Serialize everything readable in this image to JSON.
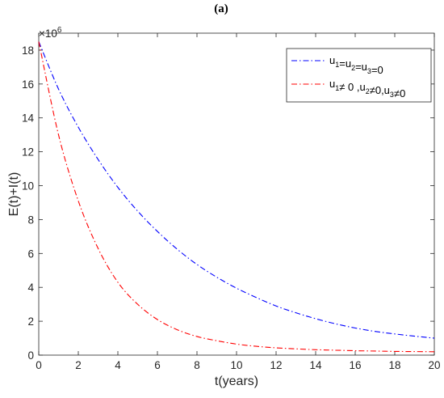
{
  "panel_label": "(a)",
  "chart_data": {
    "type": "line",
    "xlabel": "t(years)",
    "ylabel": "E(t)+I(t)",
    "y_multiplier": "×10",
    "y_multiplier_exp": "6",
    "xlim": [
      0,
      20
    ],
    "ylim": [
      0,
      19
    ],
    "xticks": [
      0,
      2,
      4,
      6,
      8,
      10,
      12,
      14,
      16,
      18,
      20
    ],
    "yticks": [
      0,
      2,
      4,
      6,
      8,
      10,
      12,
      14,
      16,
      18
    ],
    "grid": false,
    "legend_position": "top-right",
    "x": [
      0,
      1,
      2,
      3,
      4,
      5,
      6,
      7,
      8,
      9,
      10,
      11,
      12,
      13,
      14,
      15,
      16,
      17,
      18,
      19,
      20
    ],
    "series": [
      {
        "legend": [
          [
            "u",
            "1"
          ],
          [
            "=u",
            "2"
          ],
          [
            "=u",
            "3"
          ],
          [
            "=0",
            ""
          ]
        ],
        "color": "#0000ff",
        "values": [
          18.5,
          15.7,
          13.45,
          11.55,
          9.9,
          8.5,
          7.3,
          6.25,
          5.35,
          4.6,
          3.95,
          3.4,
          2.9,
          2.5,
          2.15,
          1.85,
          1.6,
          1.4,
          1.25,
          1.12,
          1.0
        ]
      },
      {
        "legend": [
          [
            "u",
            "1"
          ],
          [
            "≠ 0 ,u",
            "2"
          ],
          [
            "≠0,u",
            "3"
          ],
          [
            "≠0",
            ""
          ]
        ],
        "color": "#ff0000",
        "values": [
          18.5,
          13.0,
          9.1,
          6.3,
          4.3,
          3.0,
          2.1,
          1.5,
          1.1,
          0.85,
          0.65,
          0.52,
          0.43,
          0.37,
          0.32,
          0.29,
          0.26,
          0.24,
          0.22,
          0.21,
          0.2
        ]
      }
    ]
  }
}
